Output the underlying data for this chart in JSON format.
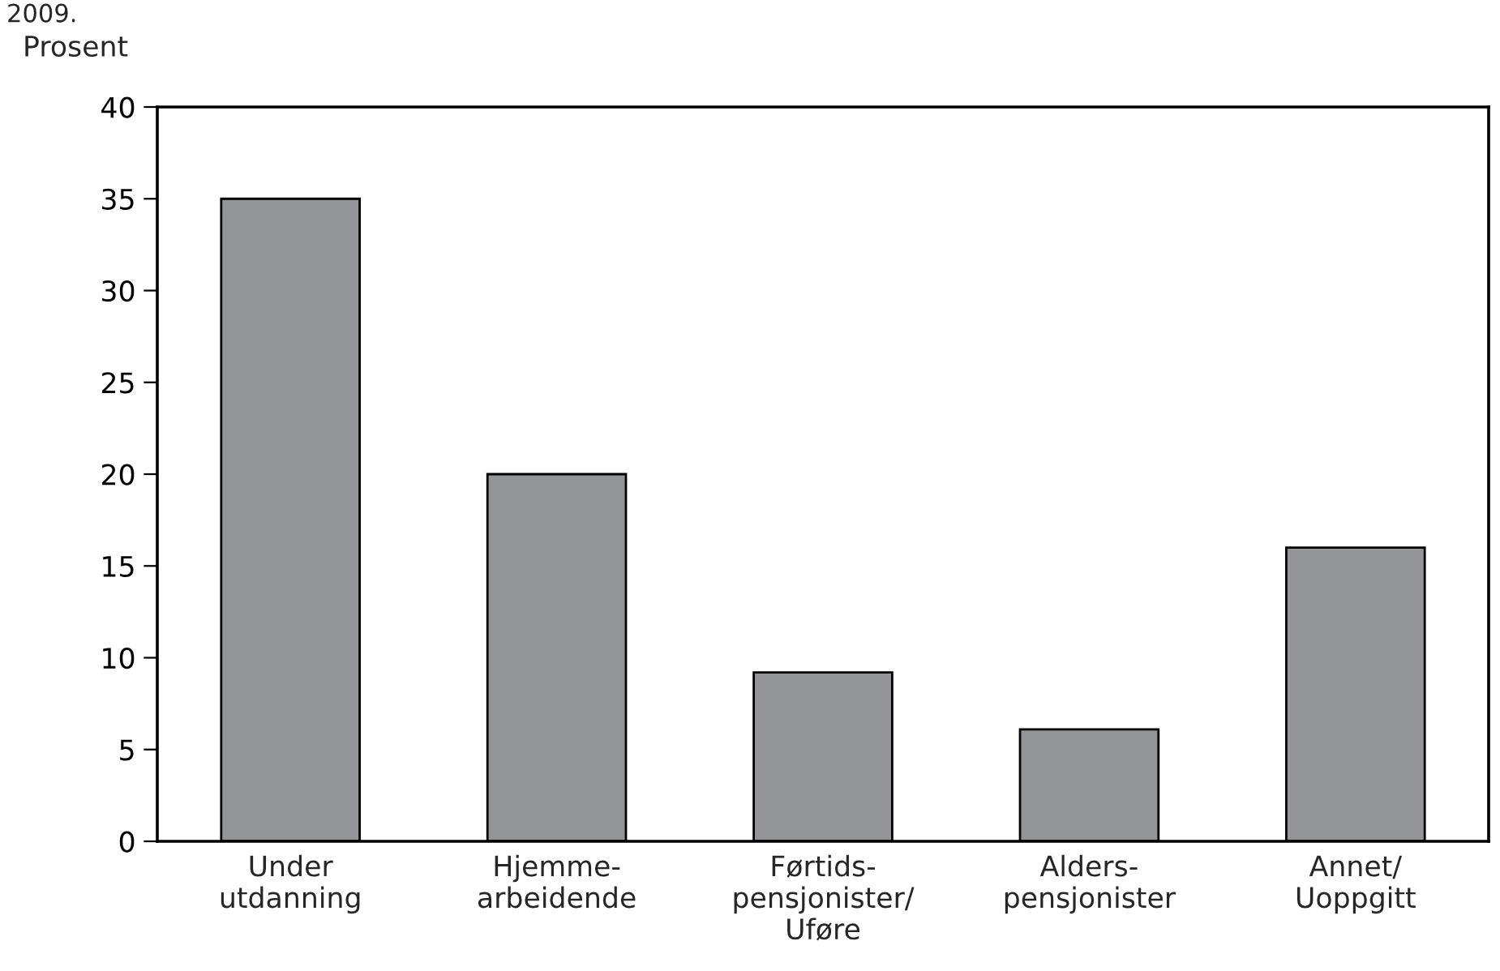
{
  "chart_data": {
    "type": "bar",
    "title": "2009.",
    "ylabel": "Prosent",
    "categories": [
      "Under\nutdanning",
      "Hjemme-\narbeidende",
      "Førtids-\npensjonister/\nUføre",
      "Alders-\npensjonister",
      "Annet/\nUoppgitt"
    ],
    "values": [
      35,
      20,
      9.2,
      6.1,
      16
    ],
    "color": "#939598",
    "ylim": [
      0,
      40
    ],
    "yticks": [
      0,
      5,
      10,
      15,
      20,
      25,
      30,
      35,
      40
    ],
    "grid": false,
    "legend": false
  }
}
